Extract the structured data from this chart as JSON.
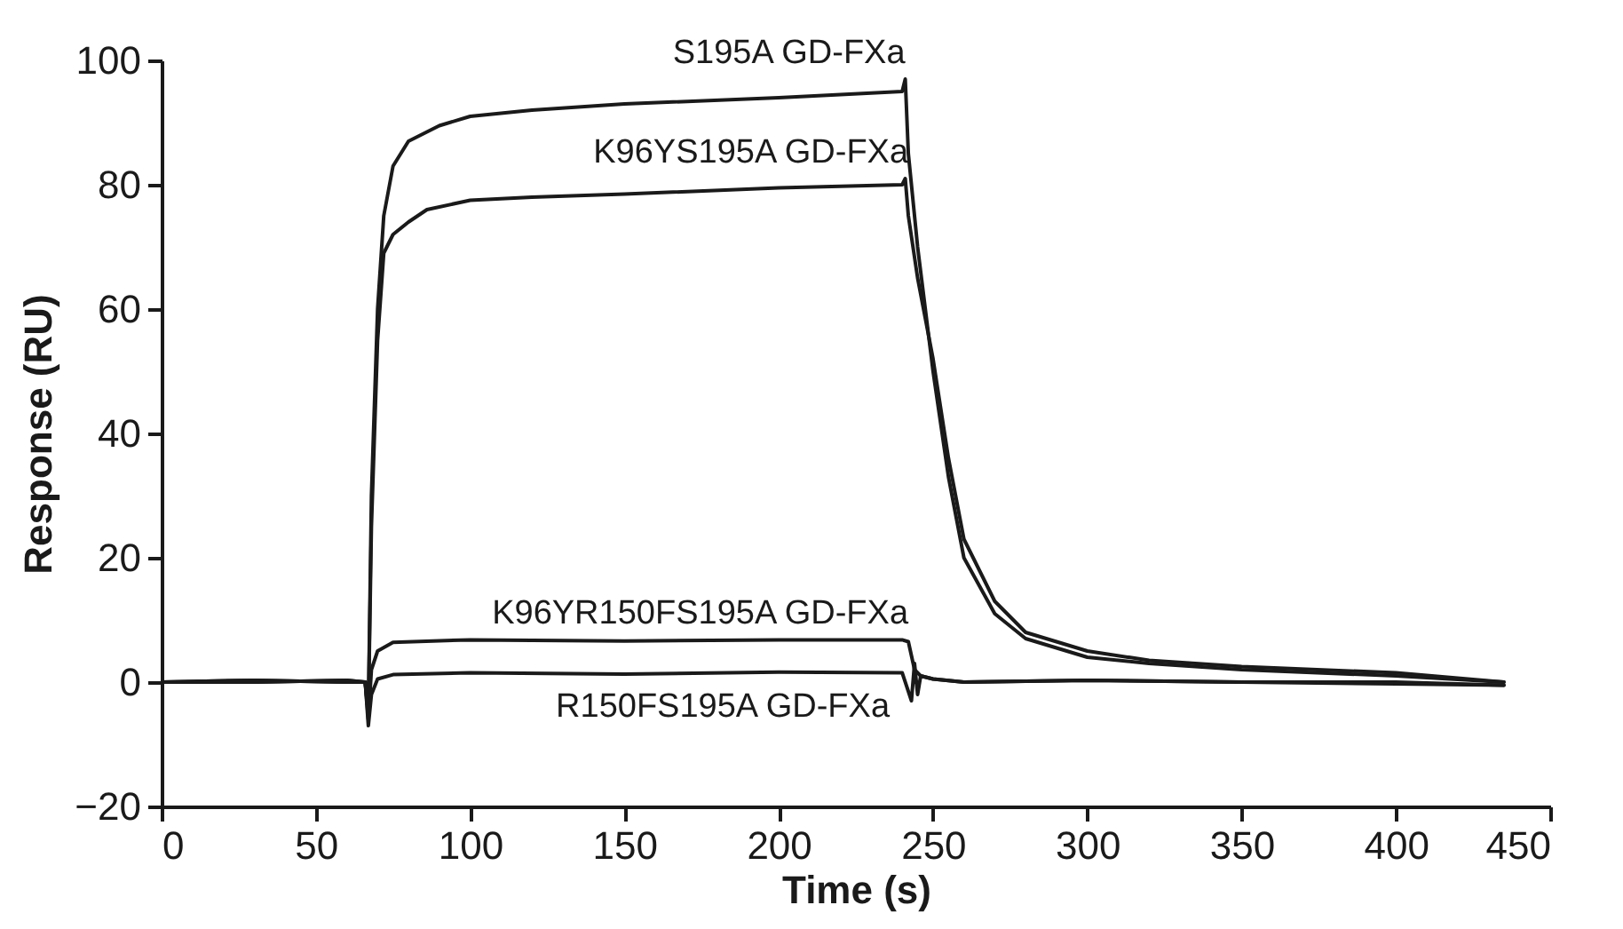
{
  "chart_data": {
    "type": "line",
    "xlabel": "Time (s)",
    "ylabel": "Response (RU)",
    "xlim": [
      0,
      450
    ],
    "ylim": [
      -20,
      100
    ],
    "xticks": [
      0,
      50,
      100,
      150,
      200,
      250,
      300,
      350,
      400,
      450
    ],
    "yticks": [
      -20,
      0,
      20,
      40,
      60,
      80,
      100
    ],
    "grid": false,
    "series": [
      {
        "name": "S195A GD-FXa",
        "color": "#1a1a1a",
        "x": [
          0,
          30,
          60,
          66,
          67,
          68,
          70,
          72,
          75,
          80,
          90,
          100,
          120,
          150,
          200,
          240,
          241,
          242,
          245,
          250,
          255,
          260,
          270,
          280,
          300,
          320,
          350,
          400,
          435
        ],
        "values": [
          0,
          0.3,
          0,
          0,
          -5,
          30,
          60,
          75,
          83,
          87,
          89.5,
          91,
          92,
          93,
          94,
          95,
          97,
          85,
          70,
          50,
          33,
          20,
          11,
          7,
          4,
          3,
          2,
          1,
          0
        ]
      },
      {
        "name": "K96YS195A GD-FXa",
        "color": "#1a1a1a",
        "x": [
          0,
          30,
          60,
          66,
          67,
          68,
          70,
          72,
          75,
          80,
          86,
          100,
          120,
          150,
          200,
          240,
          241,
          242,
          245,
          250,
          255,
          260,
          270,
          280,
          300,
          320,
          350,
          400,
          435
        ],
        "values": [
          0,
          0,
          0.3,
          0,
          -5,
          25,
          55,
          69,
          72,
          74,
          76,
          77.5,
          78,
          78.5,
          79.5,
          80,
          81,
          75,
          65,
          52,
          36,
          23,
          13,
          8,
          5,
          3.5,
          2.5,
          1.5,
          0
        ]
      },
      {
        "name": "K96YR150FS195A GD-FXa",
        "color": "#1a1a1a",
        "x": [
          0,
          30,
          60,
          66,
          67,
          68,
          70,
          75,
          100,
          150,
          200,
          240,
          242,
          244,
          246,
          250,
          260,
          300,
          350,
          400,
          435
        ],
        "values": [
          0,
          0.3,
          0,
          0,
          -6,
          2,
          5,
          6.4,
          6.8,
          6.6,
          6.8,
          6.8,
          6.5,
          2,
          1,
          0.5,
          0,
          0.3,
          0,
          0,
          -0.5
        ]
      },
      {
        "name": "R150FS195A GD-FXa",
        "color": "#1a1a1a",
        "x": [
          0,
          30,
          60,
          66,
          67,
          68,
          70,
          75,
          100,
          150,
          200,
          240,
          243,
          244,
          245,
          246,
          250,
          260,
          300,
          350,
          400,
          435
        ],
        "values": [
          0,
          0,
          0.3,
          0,
          -7,
          -2,
          0.5,
          1.2,
          1.5,
          1.3,
          1.6,
          1.5,
          -3,
          3,
          -2,
          1,
          0.5,
          0,
          0.3,
          0,
          -0.3,
          -0.5
        ]
      }
    ]
  }
}
